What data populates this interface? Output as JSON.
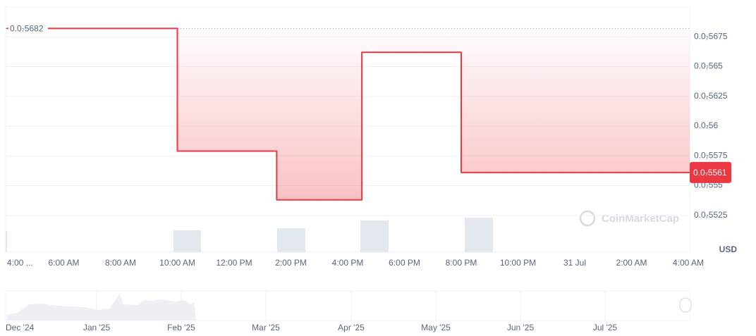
{
  "chart_data": {
    "type": "step",
    "currency": "USD",
    "watermark": "CoinMarketCap",
    "color": "#ea3943",
    "categories": [
      "4:00 ...",
      null,
      null,
      null,
      "6:00 AM",
      null,
      null,
      null,
      "8:00 AM",
      null,
      null,
      null,
      "10:00 AM",
      null,
      null,
      null,
      "12:00 PM",
      null,
      null,
      null,
      "2:00 PM",
      null,
      null,
      null,
      "4:00 PM",
      null,
      null,
      null,
      "6:00 PM",
      null,
      null,
      null,
      "8:00 PM",
      null,
      null,
      null,
      "10:00 PM",
      null,
      null,
      null,
      "31 Jul",
      null,
      null,
      null,
      "2:00 AM",
      null,
      null,
      null,
      "4:00 AM"
    ],
    "values": [
      5.682e-08,
      5.682e-08,
      5.682e-08,
      5.682e-08,
      5.682e-08,
      5.682e-08,
      5.682e-08,
      5.682e-08,
      5.682e-08,
      5.682e-08,
      5.682e-08,
      5.682e-08,
      5.579e-08,
      5.579e-08,
      5.579e-08,
      5.579e-08,
      5.579e-08,
      5.579e-08,
      5.579e-08,
      5.538e-08,
      5.538e-08,
      5.538e-08,
      5.538e-08,
      5.538e-08,
      5.538e-08,
      5.662e-08,
      5.662e-08,
      5.662e-08,
      5.662e-08,
      5.662e-08,
      5.662e-08,
      5.662e-08,
      5.561e-08,
      5.561e-08,
      5.561e-08,
      5.561e-08,
      5.561e-08,
      5.561e-08,
      5.561e-08,
      5.561e-08,
      5.561e-08,
      5.561e-08,
      5.561e-08,
      5.561e-08,
      5.561e-08,
      5.561e-08,
      5.561e-08,
      5.561e-08,
      5.561e-08
    ],
    "value_labels": [
      "0.0₇5682",
      null,
      null,
      null,
      null,
      null,
      null,
      null,
      null,
      null,
      null,
      null,
      null,
      null,
      null,
      null,
      null,
      null,
      null,
      null,
      null,
      null,
      null,
      null,
      null,
      null,
      null,
      null,
      null,
      null,
      null,
      null,
      null,
      null,
      null,
      null,
      null,
      null,
      null,
      null,
      null,
      null,
      null,
      null,
      null,
      null,
      null,
      null,
      "0.0₇5561"
    ],
    "ylim": [
      5.5e-08,
      5.7e-08
    ],
    "yticks": [
      {
        "value": 5.525e-08,
        "label": "0.0₇5525"
      },
      {
        "value": 5.55e-08,
        "label": "0.0₇555"
      },
      {
        "value": 5.575e-08,
        "label": "0.0₇5575"
      },
      {
        "value": 5.6e-08,
        "label": "0.0₇56"
      },
      {
        "value": 5.625e-08,
        "label": "0.0₇5625"
      },
      {
        "value": 5.65e-08,
        "label": "0.0₇565"
      },
      {
        "value": 5.675e-08,
        "label": "0.0₇5675"
      }
    ],
    "grid": true,
    "navigator_labels": [
      "Dec '24",
      "Jan '25",
      "Feb '25",
      "Mar '25",
      "Apr '25",
      "May '25",
      "Jun '25",
      "Jul '25"
    ]
  }
}
